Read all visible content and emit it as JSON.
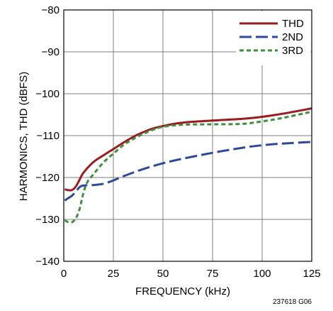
{
  "chart_data": {
    "type": "line",
    "xlabel": "FREQUENCY (kHz)",
    "ylabel": "HARMONICS, THD (dBFS)",
    "xlim": [
      0,
      125
    ],
    "ylim": [
      -140,
      -80
    ],
    "x_ticks": [
      0,
      25,
      50,
      75,
      100,
      125
    ],
    "y_ticks": [
      -80,
      -90,
      -100,
      -110,
      -120,
      -130,
      -140
    ],
    "x_tick_labels": [
      "0",
      "25",
      "50",
      "75",
      "100",
      "125"
    ],
    "y_tick_labels": [
      "−80",
      "−90",
      "−100",
      "−110",
      "−120",
      "−130",
      "−140"
    ],
    "grid": true,
    "legend_position": "top-right",
    "figure_id": "237618 G06",
    "series": [
      {
        "name": "THD",
        "color": "#9b1b1f",
        "dash": "solid",
        "x": [
          0.5,
          2,
          4,
          6,
          8,
          10,
          15,
          20,
          25,
          30,
          35,
          40,
          45,
          50,
          60,
          75,
          90,
          100,
          110,
          125
        ],
        "y": [
          -122.8,
          -123.0,
          -123.0,
          -122.2,
          -120.5,
          -118.8,
          -116.3,
          -114.7,
          -113.2,
          -111.7,
          -110.3,
          -109.2,
          -108.3,
          -107.7,
          -106.9,
          -106.4,
          -106.0,
          -105.5,
          -104.8,
          -103.5
        ]
      },
      {
        "name": "2ND",
        "color": "#2e4a9e",
        "dash": "long",
        "x": [
          0.5,
          2,
          4,
          6,
          8,
          10,
          15,
          20,
          25,
          30,
          40,
          50,
          60,
          75,
          90,
          100,
          110,
          125
        ],
        "y": [
          -125.5,
          -125.0,
          -124.4,
          -123.4,
          -122.3,
          -121.9,
          -121.8,
          -121.5,
          -120.7,
          -119.7,
          -118.0,
          -116.6,
          -115.5,
          -114.1,
          -112.9,
          -112.3,
          -111.9,
          -111.5
        ]
      },
      {
        "name": "3RD",
        "color": "#3f8f3c",
        "dash": "short",
        "x": [
          0.5,
          2,
          4,
          6,
          8,
          10,
          12,
          15,
          20,
          25,
          30,
          35,
          40,
          45,
          50,
          60,
          75,
          90,
          100,
          110,
          125
        ],
        "y": [
          -130.2,
          -130.6,
          -130.7,
          -129.8,
          -127.5,
          -123.5,
          -121.0,
          -119.2,
          -116.4,
          -114.3,
          -112.3,
          -110.8,
          -109.6,
          -108.6,
          -107.9,
          -107.4,
          -107.3,
          -107.2,
          -106.6,
          -105.8,
          -104.3
        ]
      }
    ]
  }
}
